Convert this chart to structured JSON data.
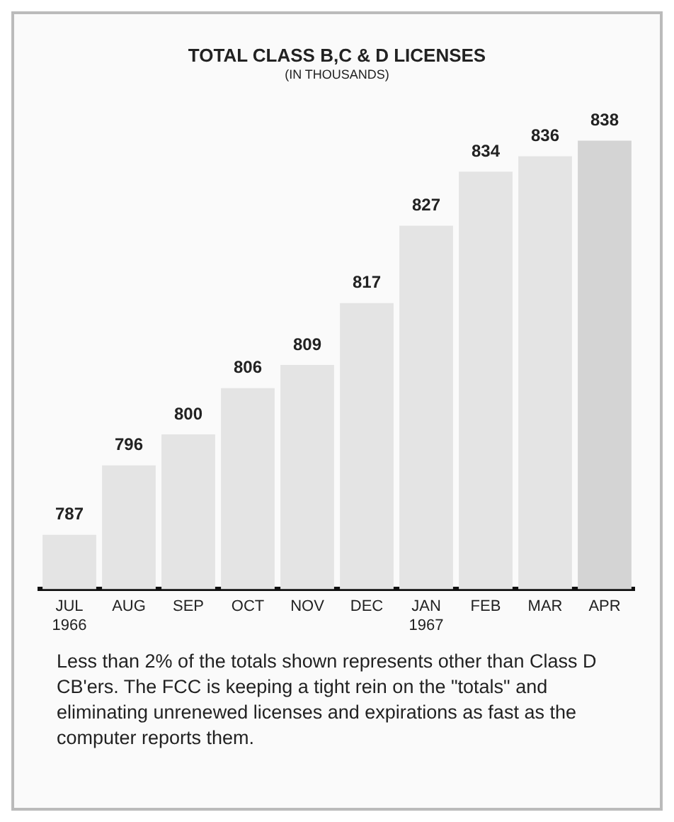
{
  "chart_data": {
    "type": "bar",
    "title": "TOTAL CLASS B,C & D LICENSES",
    "subtitle": "(IN THOUSANDS)",
    "categories": [
      "JUL\n1966",
      "AUG",
      "SEP",
      "OCT",
      "NOV",
      "DEC",
      "JAN\n1967",
      "FEB",
      "MAR",
      "APR"
    ],
    "values": [
      787,
      796,
      800,
      806,
      809,
      817,
      827,
      834,
      836,
      838
    ],
    "colors": [
      "#e4e4e4",
      "#e4e4e4",
      "#e4e4e4",
      "#e4e4e4",
      "#e4e4e4",
      "#e4e4e4",
      "#e4e4e4",
      "#e4e4e4",
      "#e4e4e4",
      "#d4d4d4"
    ],
    "data_labels": true,
    "legend": false,
    "annotations": [
      "Less than 2% of the totals shown represents other than Class D CB'ers. The FCC is keeping a tight rein on the \"totals\" and eliminating unrenewed licenses and expirations as fast as the computer reports them."
    ]
  }
}
